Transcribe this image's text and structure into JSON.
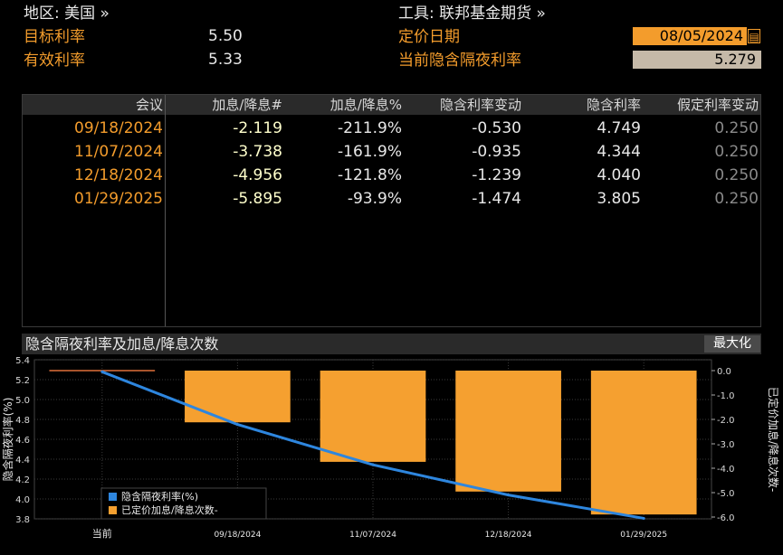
{
  "header": {
    "region_label": "地区: 美国 »",
    "instrument_label": "工具: 联邦基金期货 »",
    "target_rate_label": "目标利率",
    "target_rate_value": "5.50",
    "effective_rate_label": "有效利率",
    "effective_rate_value": "5.33",
    "pricing_date_label": "定价日期",
    "pricing_date_value": "08/05/2024",
    "implied_overnight_label": "当前隐含隔夜利率",
    "implied_overnight_value": "5.279"
  },
  "table": {
    "columns": [
      "会议",
      "加息/降息#",
      "加息/降息%",
      "隐含利率变动",
      "隐含利率",
      "假定利率变动"
    ],
    "rows": [
      {
        "meeting": "09/18/2024",
        "hikes_cuts_num": "-2.119",
        "hikes_cuts_pct": "-211.9%",
        "implied_change": "-0.530",
        "implied_rate": "4.749",
        "assumed_change": "0.250"
      },
      {
        "meeting": "11/07/2024",
        "hikes_cuts_num": "-3.738",
        "hikes_cuts_pct": "-161.9%",
        "implied_change": "-0.935",
        "implied_rate": "4.344",
        "assumed_change": "0.250"
      },
      {
        "meeting": "12/18/2024",
        "hikes_cuts_num": "-4.956",
        "hikes_cuts_pct": "-121.8%",
        "implied_change": "-1.239",
        "implied_rate": "4.040",
        "assumed_change": "0.250"
      },
      {
        "meeting": "01/29/2025",
        "hikes_cuts_num": "-5.895",
        "hikes_cuts_pct": "-93.9%",
        "implied_change": "-1.474",
        "implied_rate": "3.805",
        "assumed_change": "0.250"
      }
    ]
  },
  "chart_panel": {
    "title": "隐含隔夜利率及加息/降息次数",
    "maximize_label": "最大化"
  },
  "chart_data": {
    "type": "bar",
    "categories": [
      "当前",
      "09/18/2024",
      "11/07/2024",
      "12/18/2024",
      "01/29/2025"
    ],
    "series": [
      {
        "name": "隐含隔夜利率(%)",
        "type": "line",
        "axis": "left",
        "values": [
          5.279,
          4.749,
          4.344,
          4.04,
          3.805
        ],
        "color": "#2e86de"
      },
      {
        "name": "已定价加息/降息次数-",
        "type": "bar",
        "axis": "right",
        "values": [
          0,
          -2.119,
          -3.738,
          -4.956,
          -5.895
        ],
        "color": "#f5a030"
      }
    ],
    "ylabel": "隐含隔夜利率(%)",
    "y2label": "已定价加息/降息次数-",
    "ylim": [
      3.8,
      5.4
    ],
    "y2lim": [
      -6.0,
      0.0
    ],
    "yticks": [
      "5.4",
      "5.2",
      "5.0",
      "4.8",
      "4.6",
      "4.4",
      "4.2",
      "4.0",
      "3.8"
    ],
    "y2ticks": [
      "0.0",
      "-1.0",
      "-2.0",
      "-3.0",
      "-4.0",
      "-5.0",
      "-6.0"
    ],
    "legend_position": "bottom-left",
    "grid": true
  }
}
